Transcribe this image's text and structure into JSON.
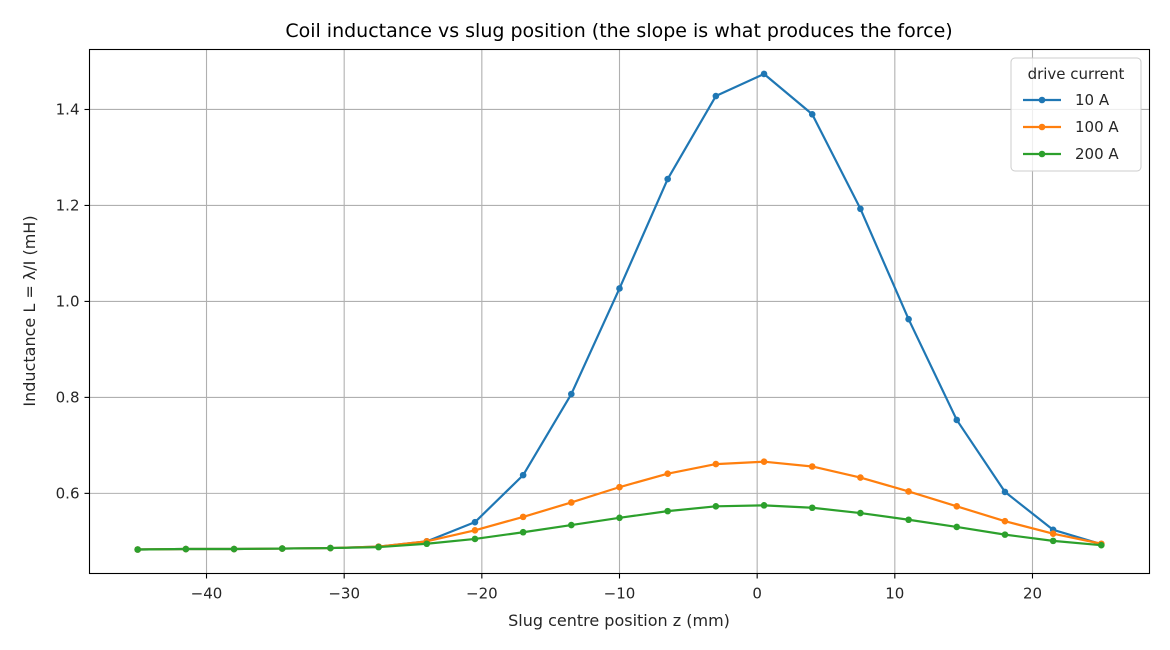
{
  "chart_data": {
    "type": "line",
    "title": "Coil inductance vs slug position (the slope is what produces the force)",
    "xlabel": "Slug centre position z (mm)",
    "ylabel": "Inductance L = λ/I (mH)",
    "xlim": [
      -48.5,
      28.5
    ],
    "ylim": [
      0.433,
      1.525
    ],
    "xticks": [
      -40,
      -30,
      -20,
      -10,
      0,
      10,
      20
    ],
    "xtick_labels": [
      "−40",
      "−30",
      "−20",
      "−10",
      "0",
      "10",
      "20"
    ],
    "yticks": [
      0.6,
      0.8,
      1.0,
      1.2,
      1.4
    ],
    "ytick_labels": [
      "0.6",
      "0.8",
      "1.0",
      "1.2",
      "1.4"
    ],
    "grid": true,
    "legend": {
      "title": "drive current",
      "placement": "top-right"
    },
    "x": [
      -45,
      -41.5,
      -38,
      -34.5,
      -31,
      -27.5,
      -24,
      -20.5,
      -17,
      -13.5,
      -10,
      -6.5,
      -3,
      0.5,
      4,
      7.5,
      11,
      14.5,
      18,
      21.5,
      25
    ],
    "series": [
      {
        "name": "10 A",
        "color": "#1f77b4",
        "values": [
          0.483,
          0.484,
          0.484,
          0.485,
          0.486,
          0.489,
          0.5,
          0.54,
          0.638,
          0.807,
          1.027,
          1.255,
          1.428,
          1.474,
          1.39,
          1.193,
          0.963,
          0.753,
          0.603,
          0.524,
          0.494
        ]
      },
      {
        "name": "100 A",
        "color": "#ff7f0e",
        "values": [
          0.483,
          0.484,
          0.484,
          0.485,
          0.486,
          0.489,
          0.5,
          0.523,
          0.551,
          0.581,
          0.613,
          0.641,
          0.661,
          0.666,
          0.656,
          0.633,
          0.604,
          0.573,
          0.542,
          0.516,
          0.495
        ]
      },
      {
        "name": "200 A",
        "color": "#2ca02c",
        "values": [
          0.483,
          0.484,
          0.484,
          0.485,
          0.486,
          0.488,
          0.495,
          0.505,
          0.519,
          0.534,
          0.549,
          0.563,
          0.573,
          0.575,
          0.57,
          0.559,
          0.545,
          0.53,
          0.514,
          0.501,
          0.492
        ]
      }
    ]
  }
}
